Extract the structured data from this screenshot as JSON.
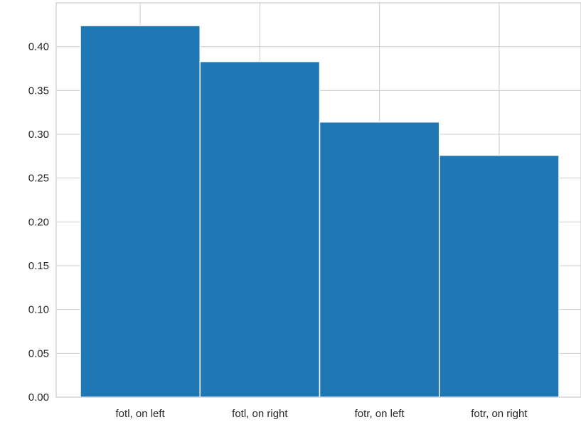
{
  "chart_data": {
    "type": "bar",
    "categories": [
      "fotl, on left",
      "fotl, on right",
      "fotr, on left",
      "fotr, on right"
    ],
    "values": [
      0.424,
      0.383,
      0.314,
      0.276
    ],
    "title": "",
    "xlabel": "",
    "ylabel": "",
    "ylim": [
      0,
      0.45
    ],
    "yticks": [
      0.0,
      0.05,
      0.1,
      0.15,
      0.2,
      0.25,
      0.3,
      0.35,
      0.4
    ],
    "ytick_labels": [
      "0.00",
      "0.05",
      "0.10",
      "0.15",
      "0.20",
      "0.25",
      "0.30",
      "0.35",
      "0.40"
    ],
    "grid": true,
    "bar_color": "#1f77b4",
    "grid_color": "#cccccc"
  }
}
